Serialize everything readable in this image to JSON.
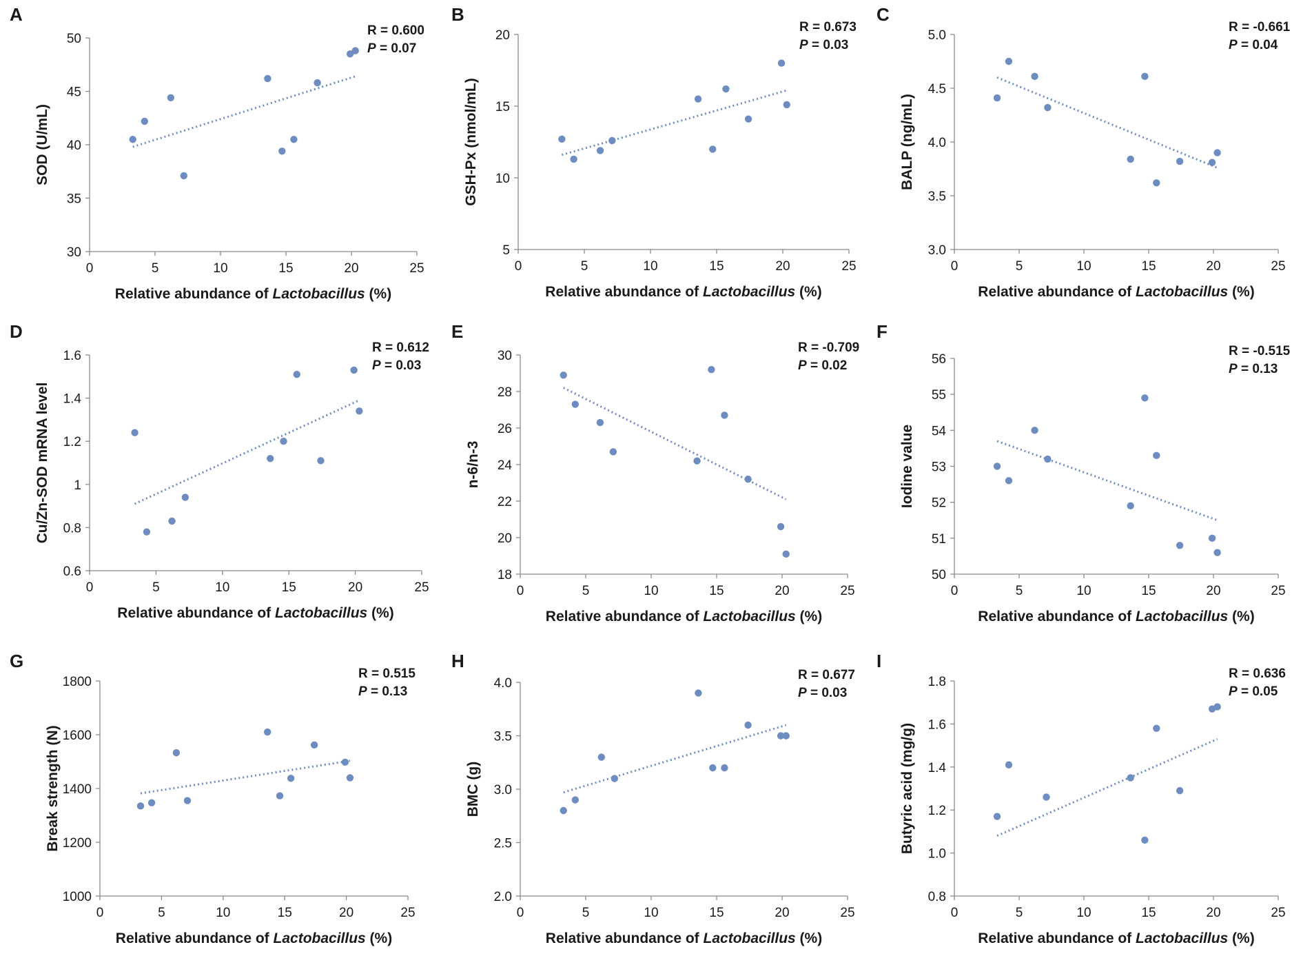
{
  "figure": {
    "colors": {
      "point": "#6d8cc0",
      "trendline": "#6d8cc0",
      "axis": "#8a8a8a",
      "text": "#1a1a1a"
    }
  },
  "chart_data": [
    {
      "type": "scatter",
      "panel": "A",
      "xlabel": "Relative abundance of ",
      "xlabel_italic": "Lactobacillus",
      "xlabel_suffix": " (%)",
      "ylabel": "SOD (U/mL)",
      "xlim": [
        0,
        25
      ],
      "ylim": [
        30,
        50
      ],
      "xticks": [
        "0",
        "5",
        "10",
        "15",
        "20",
        "25"
      ],
      "yticks": [
        "30",
        "35",
        "40",
        "45",
        "50"
      ],
      "points": [
        [
          3.3,
          40.5
        ],
        [
          4.2,
          42.2
        ],
        [
          6.2,
          44.4
        ],
        [
          7.2,
          37.1
        ],
        [
          13.6,
          46.2
        ],
        [
          14.7,
          39.4
        ],
        [
          15.6,
          40.5
        ],
        [
          17.4,
          45.8
        ],
        [
          19.9,
          48.5
        ],
        [
          20.3,
          48.8
        ]
      ],
      "trendline": [
        [
          3.3,
          39.8
        ],
        [
          20.3,
          46.4
        ]
      ],
      "stats": {
        "r_label": "R = 0.600",
        "p_label": "P",
        "p_value": " = 0.07"
      }
    },
    {
      "type": "scatter",
      "panel": "B",
      "xlabel": "Relative abundance of ",
      "xlabel_italic": "Lactobacillus",
      "xlabel_suffix": " (%)",
      "ylabel": "GSH-Px (nmol/mL)",
      "xlim": [
        0,
        25
      ],
      "ylim": [
        5,
        20
      ],
      "xticks": [
        "0",
        "5",
        "10",
        "15",
        "20",
        "25"
      ],
      "yticks": [
        "5",
        "10",
        "15",
        "20"
      ],
      "points": [
        [
          3.3,
          12.7
        ],
        [
          4.2,
          11.3
        ],
        [
          6.2,
          11.9
        ],
        [
          7.1,
          12.6
        ],
        [
          13.6,
          15.5
        ],
        [
          14.7,
          12.0
        ],
        [
          15.7,
          16.2
        ],
        [
          17.4,
          14.1
        ],
        [
          19.9,
          18.0
        ],
        [
          20.3,
          15.1
        ]
      ],
      "trendline": [
        [
          3.3,
          11.6
        ],
        [
          20.3,
          16.1
        ]
      ],
      "stats": {
        "r_label": "R = 0.673",
        "p_label": "P",
        "p_value": " = 0.03"
      }
    },
    {
      "type": "scatter",
      "panel": "C",
      "xlabel": "Relative abundance of ",
      "xlabel_italic": "Lactobacillus",
      "xlabel_suffix": " (%)",
      "ylabel": "BALP (ng/mL)",
      "xlim": [
        0,
        25
      ],
      "ylim": [
        3.0,
        5.0
      ],
      "xticks": [
        "0",
        "5",
        "10",
        "15",
        "20",
        "25"
      ],
      "yticks": [
        "3.0",
        "3.5",
        "4.0",
        "4.5",
        "5.0"
      ],
      "points": [
        [
          3.3,
          4.41
        ],
        [
          4.2,
          4.75
        ],
        [
          6.2,
          4.61
        ],
        [
          7.2,
          4.32
        ],
        [
          13.6,
          3.84
        ],
        [
          14.7,
          4.61
        ],
        [
          15.6,
          3.62
        ],
        [
          17.4,
          3.82
        ],
        [
          19.9,
          3.81
        ],
        [
          20.3,
          3.9
        ]
      ],
      "trendline": [
        [
          3.3,
          4.6
        ],
        [
          20.3,
          3.76
        ]
      ],
      "stats": {
        "r_label": "R = -0.661",
        "p_label": "P",
        "p_value": " = 0.04"
      }
    },
    {
      "type": "scatter",
      "panel": "D",
      "xlabel": "Relative abundance of ",
      "xlabel_italic": "Lactobacillus",
      "xlabel_suffix": " (%)",
      "ylabel": "Cu/Zn-SOD mRNA level",
      "xlim": [
        0,
        25
      ],
      "ylim": [
        0.6,
        1.6
      ],
      "xticks": [
        "0",
        "5",
        "10",
        "15",
        "20",
        "25"
      ],
      "yticks": [
        "0.6",
        "0.8",
        "1",
        "1.2",
        "1.4",
        "1.6"
      ],
      "points": [
        [
          3.4,
          1.24
        ],
        [
          4.3,
          0.78
        ],
        [
          6.2,
          0.83
        ],
        [
          7.2,
          0.94
        ],
        [
          13.6,
          1.12
        ],
        [
          14.6,
          1.2
        ],
        [
          15.6,
          1.51
        ],
        [
          17.4,
          1.11
        ],
        [
          19.9,
          1.53
        ],
        [
          20.3,
          1.34
        ]
      ],
      "trendline": [
        [
          3.4,
          0.91
        ],
        [
          20.3,
          1.39
        ]
      ],
      "stats": {
        "r_label": "R = 0.612",
        "p_label": "P",
        "p_value": " = 0.03"
      }
    },
    {
      "type": "scatter",
      "panel": "E",
      "xlabel": "Relative abundance of ",
      "xlabel_italic": "Lactobacillus",
      "xlabel_suffix": " (%)",
      "ylabel": "n-6/n-3",
      "xlim": [
        0,
        25
      ],
      "ylim": [
        18,
        30
      ],
      "xticks": [
        "0",
        "5",
        "10",
        "15",
        "20",
        "25"
      ],
      "yticks": [
        "18",
        "20",
        "22",
        "24",
        "26",
        "28",
        "30"
      ],
      "points": [
        [
          3.3,
          28.9
        ],
        [
          4.2,
          27.3
        ],
        [
          6.1,
          26.3
        ],
        [
          7.1,
          24.7
        ],
        [
          13.5,
          24.2
        ],
        [
          14.6,
          29.2
        ],
        [
          15.6,
          26.7
        ],
        [
          17.4,
          23.2
        ],
        [
          19.9,
          20.6
        ],
        [
          20.3,
          19.1
        ]
      ],
      "trendline": [
        [
          3.3,
          28.2
        ],
        [
          20.3,
          22.1
        ]
      ],
      "stats": {
        "r_label": "R = -0.709",
        "p_label": "P",
        "p_value": " = 0.02"
      }
    },
    {
      "type": "scatter",
      "panel": "F",
      "xlabel": "Relative abundance of ",
      "xlabel_italic": "Lactobacillus",
      "xlabel_suffix": " (%)",
      "ylabel": "Iodine value",
      "xlim": [
        0,
        25
      ],
      "ylim": [
        50,
        56
      ],
      "xticks": [
        "0",
        "5",
        "10",
        "15",
        "20",
        "25"
      ],
      "yticks": [
        "50",
        "51",
        "52",
        "53",
        "54",
        "55",
        "56"
      ],
      "points": [
        [
          3.3,
          53.0
        ],
        [
          4.2,
          52.6
        ],
        [
          6.2,
          54.0
        ],
        [
          7.2,
          53.2
        ],
        [
          13.6,
          51.9
        ],
        [
          14.7,
          54.9
        ],
        [
          15.6,
          53.3
        ],
        [
          17.4,
          50.8
        ],
        [
          19.9,
          51.0
        ],
        [
          20.3,
          50.6
        ]
      ],
      "trendline": [
        [
          3.3,
          53.7
        ],
        [
          20.3,
          51.5
        ]
      ],
      "stats": {
        "r_label": "R = -0.515",
        "p_label": "P",
        "p_value": " = 0.13"
      }
    },
    {
      "type": "scatter",
      "panel": "G",
      "xlabel": "Relative abundance of ",
      "xlabel_italic": "Lactobacillus",
      "xlabel_suffix": " (%)",
      "ylabel": "Break strength (N)",
      "xlim": [
        0,
        25
      ],
      "ylim": [
        1000,
        1800
      ],
      "xticks": [
        "0",
        "5",
        "10",
        "15",
        "20",
        "25"
      ],
      "yticks": [
        "1000",
        "1200",
        "1400",
        "1600",
        "1800"
      ],
      "points": [
        [
          3.3,
          1335
        ],
        [
          4.2,
          1347
        ],
        [
          6.2,
          1533
        ],
        [
          7.1,
          1355
        ],
        [
          13.6,
          1610
        ],
        [
          14.6,
          1373
        ],
        [
          15.5,
          1438
        ],
        [
          17.4,
          1562
        ],
        [
          19.9,
          1498
        ],
        [
          20.3,
          1440
        ]
      ],
      "trendline": [
        [
          3.3,
          1382
        ],
        [
          20.3,
          1503
        ]
      ],
      "stats": {
        "r_label": "R = 0.515",
        "p_label": "P",
        "p_value": " = 0.13"
      }
    },
    {
      "type": "scatter",
      "panel": "H",
      "xlabel": "Relative abundance of ",
      "xlabel_italic": "Lactobacillus",
      "xlabel_suffix": " (%)",
      "ylabel": "BMC (g)",
      "xlim": [
        0,
        25
      ],
      "ylim": [
        2.0,
        4.0
      ],
      "xticks": [
        "0",
        "5",
        "10",
        "15",
        "20",
        "25"
      ],
      "yticks": [
        "2.0",
        "2.5",
        "3.0",
        "3.5",
        "4.0"
      ],
      "points": [
        [
          3.3,
          2.8
        ],
        [
          4.2,
          2.9
        ],
        [
          6.2,
          3.3
        ],
        [
          7.2,
          3.1
        ],
        [
          13.6,
          3.9
        ],
        [
          14.7,
          3.2
        ],
        [
          15.6,
          3.2
        ],
        [
          17.4,
          3.6
        ],
        [
          19.9,
          3.5
        ],
        [
          20.3,
          3.5
        ]
      ],
      "trendline": [
        [
          3.3,
          2.97
        ],
        [
          20.3,
          3.6
        ]
      ],
      "stats": {
        "r_label": "R = 0.677",
        "p_label": "P",
        "p_value": " = 0.03"
      }
    },
    {
      "type": "scatter",
      "panel": "I",
      "xlabel": "Relative abundance of ",
      "xlabel_italic": "Lactobacillus",
      "xlabel_suffix": " (%)",
      "ylabel": "Butyric acid (mg/g)",
      "xlim": [
        0,
        25
      ],
      "ylim": [
        0.8,
        1.8
      ],
      "xticks": [
        "0",
        "5",
        "10",
        "15",
        "20",
        "25"
      ],
      "yticks": [
        "0.8",
        "1.0",
        "1.2",
        "1.4",
        "1.6",
        "1.8"
      ],
      "points": [
        [
          3.3,
          1.17
        ],
        [
          4.2,
          1.41
        ],
        [
          7.1,
          1.26
        ],
        [
          13.6,
          1.35
        ],
        [
          14.7,
          1.06
        ],
        [
          15.6,
          1.58
        ],
        [
          17.4,
          1.29
        ],
        [
          19.9,
          1.67
        ],
        [
          20.3,
          1.68
        ]
      ],
      "trendline": [
        [
          3.3,
          1.08
        ],
        [
          20.3,
          1.53
        ]
      ],
      "stats": {
        "r_label": "R = 0.636",
        "p_label": "P",
        "p_value": " = 0.05"
      }
    }
  ]
}
